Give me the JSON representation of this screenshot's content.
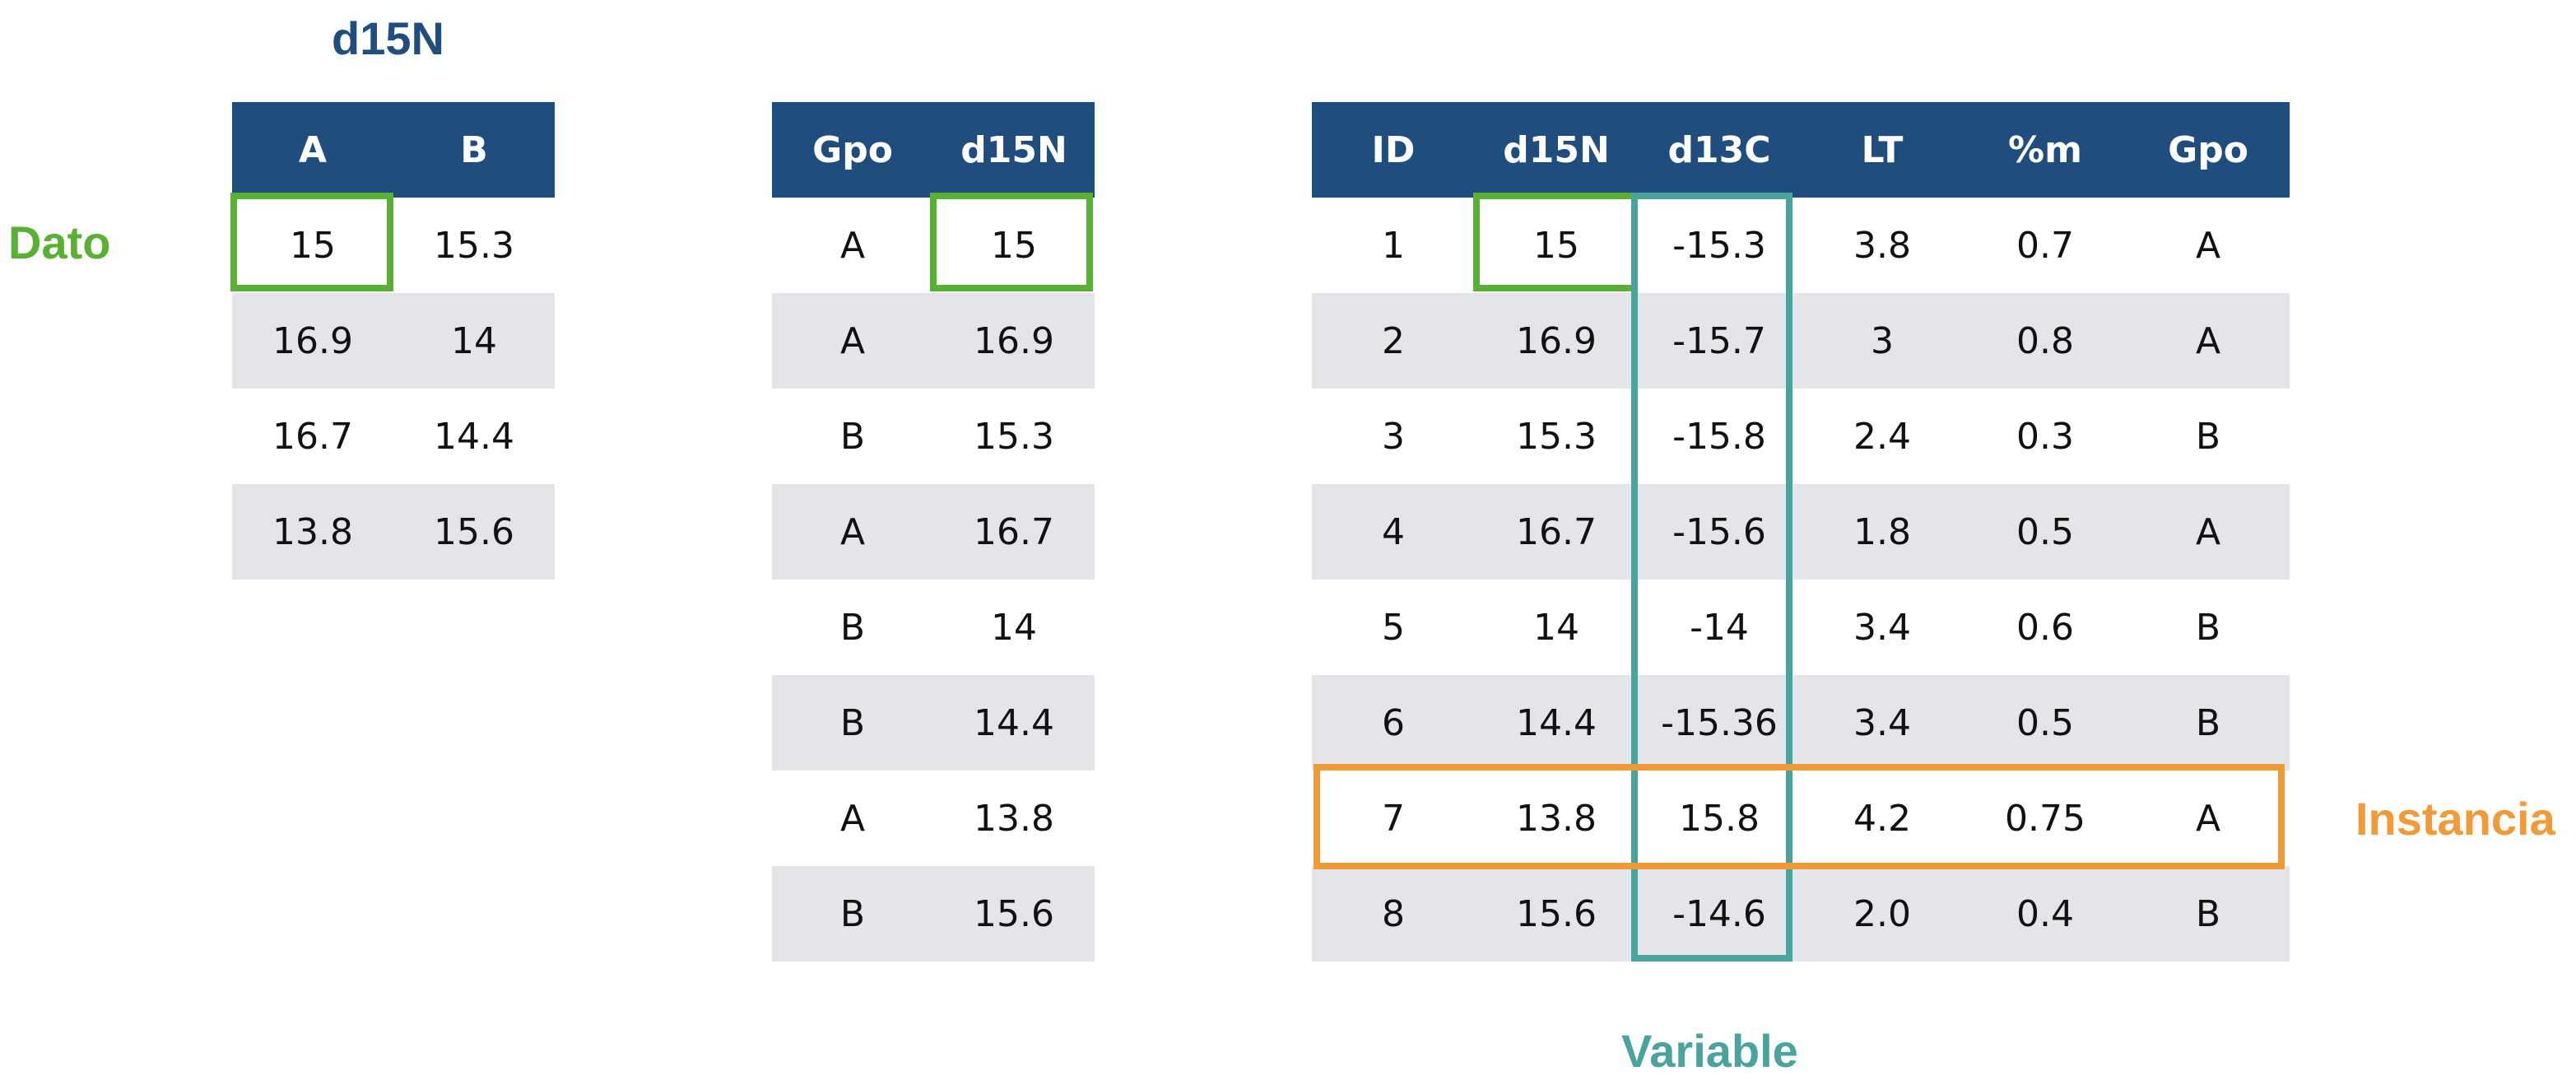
{
  "wide_table": {
    "title": "d15N",
    "headers": [
      "A",
      "B"
    ],
    "rows": [
      [
        "15",
        "15.3"
      ],
      [
        "16.9",
        "14"
      ],
      [
        "16.7",
        "14.4"
      ],
      [
        "13.8",
        "15.6"
      ]
    ]
  },
  "long_table": {
    "headers": [
      "Gpo",
      "d15N"
    ],
    "rows": [
      [
        "A",
        "15"
      ],
      [
        "A",
        "16.9"
      ],
      [
        "B",
        "15.3"
      ],
      [
        "A",
        "16.7"
      ],
      [
        "B",
        "14"
      ],
      [
        "B",
        "14.4"
      ],
      [
        "A",
        "13.8"
      ],
      [
        "B",
        "15.6"
      ]
    ]
  },
  "full_table": {
    "headers": [
      "ID",
      "d15N",
      "d13C",
      "LT",
      "%m",
      "Gpo"
    ],
    "rows": [
      [
        "1",
        "15",
        "-15.3",
        "3.8",
        "0.7",
        "A"
      ],
      [
        "2",
        "16.9",
        "-15.7",
        "3",
        "0.8",
        "A"
      ],
      [
        "3",
        "15.3",
        "-15.8",
        "2.4",
        "0.3",
        "B"
      ],
      [
        "4",
        "16.7",
        "-15.6",
        "1.8",
        "0.5",
        "A"
      ],
      [
        "5",
        "14",
        "-14",
        "3.4",
        "0.6",
        "B"
      ],
      [
        "6",
        "14.4",
        "-15.36",
        "3.4",
        "0.5",
        "B"
      ],
      [
        "7",
        "13.8",
        "15.8",
        "4.2",
        "0.75",
        "A"
      ],
      [
        "8",
        "15.6",
        "-14.6",
        "2.0",
        "0.4",
        "B"
      ]
    ]
  },
  "annotations": {
    "dato": "Dato",
    "instancia": "Instancia",
    "variable": "Variable"
  },
  "colors": {
    "header_bg": "#1f4d7e",
    "stripe": "#e4e5e8",
    "dato": "#58b034",
    "instancia": "#f09a38",
    "variable": "#4aa39d"
  }
}
